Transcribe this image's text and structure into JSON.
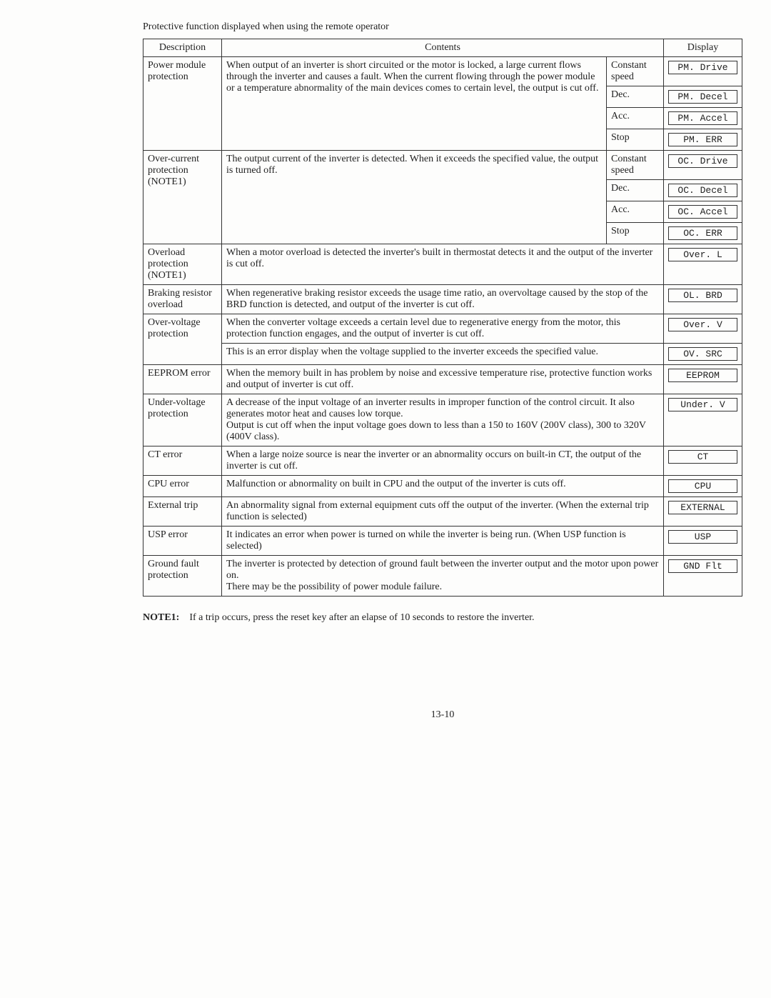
{
  "title": "Protective function displayed when using the remote operator",
  "headers": {
    "desc": "Description",
    "contents": "Contents",
    "display": "Display"
  },
  "rows": {
    "pm": {
      "desc": "Power module protection",
      "contents": "When output of an inverter is short circuited or the motor is locked, a large current flows through the inverter and causes a fault. When the current flowing through the power module or a temperature abnormality of the main devices comes to certain level, the output is cut off.",
      "states": [
        "Constant speed",
        "Dec.",
        "Acc.",
        "Stop"
      ],
      "displays": [
        "PM. Drive",
        "PM. Decel",
        "PM. Accel",
        "PM. ERR"
      ]
    },
    "oc": {
      "desc": "Over-current protection (NOTE1)",
      "contents": "The output current of the inverter is detected. When it exceeds the specified value, the output is turned off.",
      "states": [
        "Constant speed",
        "Dec.",
        "Acc.",
        "Stop"
      ],
      "displays": [
        "OC. Drive",
        "OC. Decel",
        "OC. Accel",
        "OC. ERR"
      ]
    },
    "ol": {
      "desc": "Overload protection (NOTE1)",
      "contents": "When a motor overload is detected the inverter's built in thermostat detects it and the output of the inverter is cut off.",
      "display": "Over. L"
    },
    "brd": {
      "desc": "Braking resistor overload",
      "contents": "When regenerative braking resistor exceeds the usage time ratio, an overvoltage caused by the stop of the BRD function is detected, and output of the inverter is cut off.",
      "display": "OL. BRD"
    },
    "ov1": {
      "desc": "Over-voltage protection",
      "contents": "When the converter voltage exceeds a certain level due to regenerative energy from the motor, this protection function engages, and the output of inverter is cut off.",
      "display": "Over. V"
    },
    "ov2": {
      "contents": "This is an error display when the voltage supplied to the inverter exceeds the specified value.",
      "display": "OV. SRC"
    },
    "eeprom": {
      "desc": "EEPROM error",
      "contents": "When the memory built in has problem by noise and excessive temperature rise, protective function works and output of inverter is cut off.",
      "display": "EEPROM"
    },
    "uv": {
      "desc": "Under-voltage protection",
      "contents": "A decrease of the input voltage of an inverter results in improper function of the control circuit. It also generates motor heat and causes low torque.\nOutput is cut off when the input voltage goes down to less than a 150 to 160V (200V class), 300 to 320V (400V class).",
      "display": "Under. V"
    },
    "ct": {
      "desc": "CT error",
      "contents": "When a large noize source is near the inverter or an abnormality occurs on built-in CT, the output of the inverter is cut off.",
      "display": "CT"
    },
    "cpu": {
      "desc": "CPU error",
      "contents": "Malfunction or abnormality on built in CPU and the output of the inverter is cuts off.",
      "display": "CPU"
    },
    "ext": {
      "desc": "External trip",
      "contents": "An abnormality signal from external equipment cuts off the output of the inverter. (When the external trip function is selected)",
      "display": "EXTERNAL"
    },
    "usp": {
      "desc": "USP error",
      "contents": "It indicates an error when power is turned on while the inverter is being run. (When USP function is selected)",
      "display": "USP"
    },
    "gnd": {
      "desc": "Ground fault protection",
      "contents": "The inverter is protected by detection of ground fault between the inverter output and the motor upon power on.\nThere may be the possibility of power module failure.",
      "display": "GND  Flt"
    }
  },
  "note": {
    "label": "NOTE1:",
    "text": "If a trip occurs, press the reset key after an elapse of 10 seconds to restore the inverter."
  },
  "page_number": "13-10"
}
